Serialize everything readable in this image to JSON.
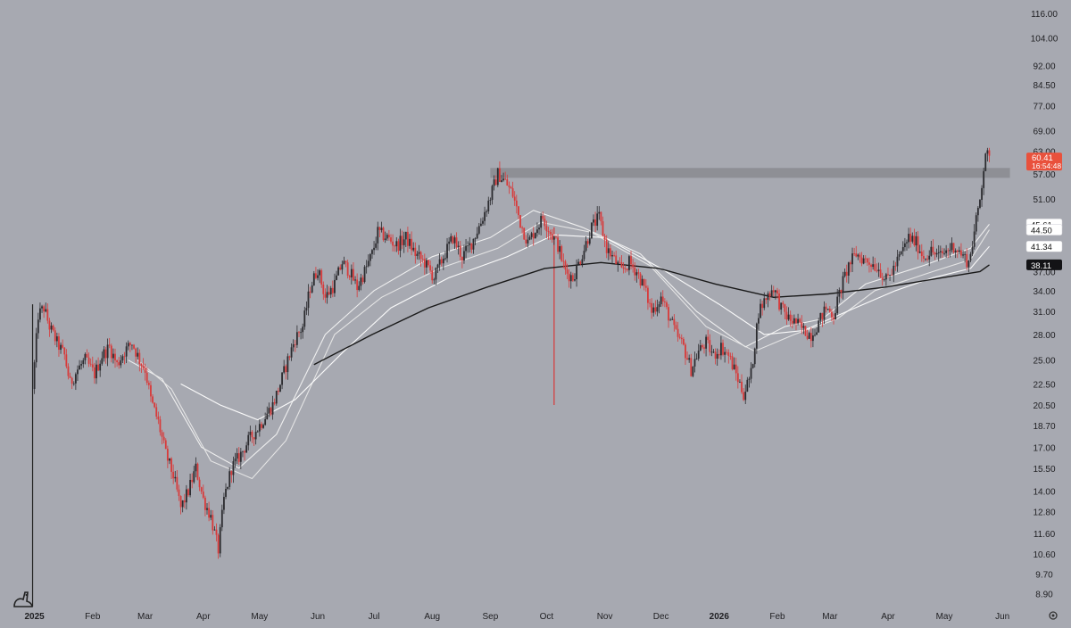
{
  "chart_data": {
    "type": "candlestick",
    "scale": "log",
    "y_ticks": [
      8.9,
      9.7,
      10.6,
      11.6,
      12.8,
      14.0,
      15.5,
      17.0,
      18.7,
      20.5,
      22.5,
      25.0,
      28.0,
      31.0,
      34.0,
      37.0,
      41.0,
      45.0,
      51.0,
      57.0,
      63.0,
      69.0,
      77.0,
      84.5,
      92.0,
      104.0,
      116.0
    ],
    "y_tick_labels": [
      "8.90",
      "9.70",
      "10.60",
      "11.60",
      "12.80",
      "14.00",
      "15.50",
      "17.00",
      "18.70",
      "20.50",
      "22.50",
      "25.00",
      "28.00",
      "31.00",
      "34.00",
      "37.00",
      "41.00",
      "45.00",
      "51.00",
      "57.00",
      "63.00",
      "69.00",
      "77.00",
      "84.50",
      "92.00",
      "104.00",
      "116.00"
    ],
    "x_ticks": [
      {
        "date": "2025-01-01",
        "label": "2025",
        "bold": true
      },
      {
        "date": "2025-02-01",
        "label": "Feb"
      },
      {
        "date": "2025-03-01",
        "label": "Mar"
      },
      {
        "date": "2025-04-01",
        "label": "Apr"
      },
      {
        "date": "2025-05-01",
        "label": "May"
      },
      {
        "date": "2025-06-01",
        "label": "Jun"
      },
      {
        "date": "2025-07-01",
        "label": "Jul"
      },
      {
        "date": "2025-08-01",
        "label": "Aug"
      },
      {
        "date": "2025-09-01",
        "label": "Sep"
      },
      {
        "date": "2025-10-01",
        "label": "Oct"
      },
      {
        "date": "2025-11-01",
        "label": "Nov"
      },
      {
        "date": "2025-12-01",
        "label": "Dec"
      },
      {
        "date": "2026-01-01",
        "label": "2026",
        "bold": true
      },
      {
        "date": "2026-02-01",
        "label": "Feb"
      },
      {
        "date": "2026-03-01",
        "label": "Mar"
      },
      {
        "date": "2026-04-01",
        "label": "Apr"
      },
      {
        "date": "2026-05-01",
        "label": "May"
      },
      {
        "date": "2026-06-01",
        "label": "Jun"
      }
    ],
    "x_range": [
      "2024-12-16",
      "2026-06-09"
    ],
    "y_range": [
      8.4,
      123
    ],
    "price_path": [
      [
        "2024-12-31",
        22.0
      ],
      [
        "2025-01-03",
        30.5
      ],
      [
        "2025-01-06",
        31.5
      ],
      [
        "2025-01-09",
        29.0
      ],
      [
        "2025-01-13",
        27.0
      ],
      [
        "2025-01-17",
        25.5
      ],
      [
        "2025-01-20",
        22.5
      ],
      [
        "2025-01-24",
        24.0
      ],
      [
        "2025-01-28",
        25.0
      ],
      [
        "2025-02-02",
        23.5
      ],
      [
        "2025-02-06",
        25.5
      ],
      [
        "2025-02-10",
        26.5
      ],
      [
        "2025-02-14",
        24.5
      ],
      [
        "2025-02-18",
        26.0
      ],
      [
        "2025-02-22",
        27.0
      ],
      [
        "2025-02-26",
        25.0
      ],
      [
        "2025-03-01",
        24.0
      ],
      [
        "2025-03-04",
        21.0
      ],
      [
        "2025-03-08",
        19.0
      ],
      [
        "2025-03-12",
        16.5
      ],
      [
        "2025-03-16",
        15.0
      ],
      [
        "2025-03-20",
        13.0
      ],
      [
        "2025-03-24",
        14.0
      ],
      [
        "2025-03-28",
        15.5
      ],
      [
        "2025-04-01",
        13.5
      ],
      [
        "2025-04-05",
        12.5
      ],
      [
        "2025-04-09",
        10.8
      ],
      [
        "2025-04-12",
        13.5
      ],
      [
        "2025-04-16",
        15.5
      ],
      [
        "2025-04-21",
        16.5
      ],
      [
        "2025-04-25",
        17.5
      ],
      [
        "2025-04-30",
        18.5
      ],
      [
        "2025-05-04",
        19.5
      ],
      [
        "2025-05-08",
        20.5
      ],
      [
        "2025-05-12",
        22.5
      ],
      [
        "2025-05-16",
        25.0
      ],
      [
        "2025-05-20",
        27.5
      ],
      [
        "2025-05-24",
        29.0
      ],
      [
        "2025-05-28",
        34.5
      ],
      [
        "2025-06-01",
        37.5
      ],
      [
        "2025-06-05",
        33.0
      ],
      [
        "2025-06-10",
        35.0
      ],
      [
        "2025-06-14",
        38.5
      ],
      [
        "2025-06-18",
        37.0
      ],
      [
        "2025-06-22",
        34.5
      ],
      [
        "2025-06-26",
        37.0
      ],
      [
        "2025-06-30",
        40.0
      ],
      [
        "2025-07-03",
        44.0
      ],
      [
        "2025-07-08",
        43.0
      ],
      [
        "2025-07-13",
        41.5
      ],
      [
        "2025-07-18",
        43.0
      ],
      [
        "2025-07-23",
        40.0
      ],
      [
        "2025-07-28",
        38.5
      ],
      [
        "2025-08-02",
        36.0
      ],
      [
        "2025-08-07",
        39.5
      ],
      [
        "2025-08-12",
        43.0
      ],
      [
        "2025-08-17",
        39.5
      ],
      [
        "2025-08-22",
        42.0
      ],
      [
        "2025-08-27",
        46.0
      ],
      [
        "2025-09-01",
        51.5
      ],
      [
        "2025-09-05",
        57.0
      ],
      [
        "2025-09-09",
        55.0
      ],
      [
        "2025-09-13",
        52.0
      ],
      [
        "2025-09-17",
        46.0
      ],
      [
        "2025-09-21",
        42.0
      ],
      [
        "2025-09-25",
        44.5
      ],
      [
        "2025-09-29",
        47.0
      ],
      [
        "2025-10-03",
        44.0
      ],
      [
        "2025-10-07",
        41.5
      ],
      [
        "2025-10-11",
        37.0
      ],
      [
        "2025-10-15",
        36.0
      ],
      [
        "2025-10-20",
        40.0
      ],
      [
        "2025-10-25",
        45.0
      ],
      [
        "2025-10-29",
        47.0
      ],
      [
        "2025-11-02",
        41.0
      ],
      [
        "2025-11-06",
        39.0
      ],
      [
        "2025-11-10",
        37.0
      ],
      [
        "2025-11-14",
        38.5
      ],
      [
        "2025-11-18",
        37.0
      ],
      [
        "2025-11-22",
        34.5
      ],
      [
        "2025-11-26",
        31.0
      ],
      [
        "2025-12-01",
        33.0
      ],
      [
        "2025-12-05",
        30.5
      ],
      [
        "2025-12-09",
        28.0
      ],
      [
        "2025-12-13",
        26.5
      ],
      [
        "2025-12-17",
        24.0
      ],
      [
        "2025-12-21",
        26.0
      ],
      [
        "2025-12-25",
        27.0
      ],
      [
        "2025-12-29",
        25.5
      ],
      [
        "2026-01-02",
        26.5
      ],
      [
        "2026-01-06",
        25.5
      ],
      [
        "2026-01-10",
        23.5
      ],
      [
        "2026-01-14",
        21.5
      ],
      [
        "2026-01-18",
        23.5
      ],
      [
        "2026-01-22",
        31.0
      ],
      [
        "2026-01-26",
        33.0
      ],
      [
        "2026-01-30",
        34.5
      ],
      [
        "2026-02-03",
        31.5
      ],
      [
        "2026-02-07",
        30.0
      ],
      [
        "2026-02-11",
        29.5
      ],
      [
        "2026-02-15",
        28.5
      ],
      [
        "2026-02-19",
        28.0
      ],
      [
        "2026-02-23",
        29.5
      ],
      [
        "2026-02-27",
        31.5
      ],
      [
        "2026-03-03",
        30.5
      ],
      [
        "2026-03-07",
        34.5
      ],
      [
        "2026-03-11",
        38.0
      ],
      [
        "2026-03-15",
        40.0
      ],
      [
        "2026-03-19",
        39.0
      ],
      [
        "2026-03-23",
        38.5
      ],
      [
        "2026-03-27",
        37.5
      ],
      [
        "2026-03-31",
        35.5
      ],
      [
        "2026-04-04",
        37.5
      ],
      [
        "2026-04-08",
        40.0
      ],
      [
        "2026-04-12",
        43.0
      ],
      [
        "2026-04-16",
        42.0
      ],
      [
        "2026-04-20",
        39.5
      ],
      [
        "2026-04-24",
        40.5
      ],
      [
        "2026-04-28",
        39.5
      ],
      [
        "2026-05-02",
        40.5
      ],
      [
        "2026-05-06",
        41.5
      ],
      [
        "2026-05-10",
        40.0
      ],
      [
        "2026-05-14",
        38.5
      ],
      [
        "2026-05-17",
        44.0
      ],
      [
        "2026-05-20",
        51.0
      ],
      [
        "2026-05-23",
        63.0
      ],
      [
        "2026-05-25",
        60.41
      ]
    ],
    "spikes": [
      {
        "date": "2024-12-31",
        "low": 8.4,
        "high": 32.0
      },
      {
        "date": "2025-10-05",
        "low": 20.5,
        "high": 45.0
      }
    ],
    "moving_averages": [
      {
        "color": "#f2f2f2",
        "last_value": 45.61,
        "path": [
          [
            "2025-02-20",
            25.0
          ],
          [
            "2025-03-10",
            23.0
          ],
          [
            "2025-03-31",
            17.0
          ],
          [
            "2025-04-20",
            15.5
          ],
          [
            "2025-05-10",
            18.0
          ],
          [
            "2025-06-05",
            28.0
          ],
          [
            "2025-07-01",
            34.0
          ],
          [
            "2025-08-01",
            39.5
          ],
          [
            "2025-09-01",
            43.0
          ],
          [
            "2025-09-24",
            48.5
          ],
          [
            "2025-10-20",
            45.0
          ],
          [
            "2025-11-20",
            40.0
          ],
          [
            "2025-12-20",
            31.0
          ],
          [
            "2026-01-15",
            26.5
          ],
          [
            "2026-02-05",
            29.0
          ],
          [
            "2026-02-25",
            30.0
          ],
          [
            "2026-03-20",
            35.0
          ],
          [
            "2026-04-20",
            38.0
          ],
          [
            "2026-05-15",
            41.0
          ],
          [
            "2026-05-25",
            45.61
          ]
        ]
      },
      {
        "color": "#e8e8e8",
        "last_value": 44.5,
        "path": [
          [
            "2025-02-25",
            25.0
          ],
          [
            "2025-03-15",
            22.0
          ],
          [
            "2025-04-05",
            16.0
          ],
          [
            "2025-04-27",
            14.8
          ],
          [
            "2025-05-15",
            17.5
          ],
          [
            "2025-06-10",
            28.0
          ],
          [
            "2025-07-05",
            33.0
          ],
          [
            "2025-08-05",
            37.5
          ],
          [
            "2025-09-05",
            41.0
          ],
          [
            "2025-09-28",
            46.0
          ],
          [
            "2025-10-25",
            44.0
          ],
          [
            "2025-11-25",
            38.0
          ],
          [
            "2025-12-25",
            29.0
          ],
          [
            "2026-01-20",
            26.0
          ],
          [
            "2026-02-10",
            28.0
          ],
          [
            "2026-03-05",
            30.0
          ],
          [
            "2026-03-25",
            34.0
          ],
          [
            "2026-04-25",
            37.0
          ],
          [
            "2026-05-15",
            39.0
          ],
          [
            "2026-05-25",
            44.5
          ]
        ]
      },
      {
        "color": "#ffffff",
        "last_value": 41.34,
        "path": [
          [
            "2025-03-20",
            22.5
          ],
          [
            "2025-04-10",
            20.5
          ],
          [
            "2025-04-30",
            19.2
          ],
          [
            "2025-05-20",
            21.0
          ],
          [
            "2025-06-15",
            26.0
          ],
          [
            "2025-07-10",
            31.5
          ],
          [
            "2025-08-10",
            36.0
          ],
          [
            "2025-09-10",
            39.5
          ],
          [
            "2025-10-05",
            43.5
          ],
          [
            "2025-11-01",
            43.0
          ],
          [
            "2025-12-01",
            37.5
          ],
          [
            "2026-01-01",
            32.0
          ],
          [
            "2026-01-25",
            28.0
          ],
          [
            "2026-02-15",
            28.5
          ],
          [
            "2026-03-10",
            31.0
          ],
          [
            "2026-04-05",
            34.0
          ],
          [
            "2026-04-25",
            36.0
          ],
          [
            "2026-05-15",
            37.5
          ],
          [
            "2026-05-25",
            41.34
          ]
        ]
      },
      {
        "color": "#111111",
        "last_value": 38.11,
        "path": [
          [
            "2025-05-30",
            24.5
          ],
          [
            "2025-06-30",
            28.0
          ],
          [
            "2025-07-30",
            31.5
          ],
          [
            "2025-08-30",
            34.5
          ],
          [
            "2025-09-30",
            37.5
          ],
          [
            "2025-10-30",
            38.5
          ],
          [
            "2025-11-30",
            37.5
          ],
          [
            "2025-12-30",
            35.0
          ],
          [
            "2026-01-30",
            33.0
          ],
          [
            "2026-02-28",
            33.5
          ],
          [
            "2026-03-30",
            34.5
          ],
          [
            "2026-04-30",
            36.0
          ],
          [
            "2026-05-20",
            37.0
          ],
          [
            "2026-05-25",
            38.11
          ]
        ]
      }
    ],
    "resistance_zone": {
      "from": "2025-09-01",
      "to": "2026-06-05",
      "low": 56.0,
      "high": 58.5
    },
    "last_price": {
      "value": 60.41,
      "label": "60.41",
      "countdown": "16:54:48"
    },
    "ma_labels": [
      {
        "text": "45.61",
        "value": 45.61,
        "style": "light"
      },
      {
        "text": "44.50",
        "value": 44.5,
        "style": "light"
      },
      {
        "text": "41.34",
        "value": 41.34,
        "style": "light"
      },
      {
        "text": "38.11",
        "value": 38.11,
        "style": "dark"
      }
    ],
    "colors": {
      "background": "#a7a9b1",
      "up": "#2b2b2f",
      "down": "#d83a3a",
      "price_tag": "#e9513c",
      "zone": "#8a8b91"
    }
  },
  "icons": {
    "logo": "tradingview-logo-icon",
    "settings": "gear-icon"
  }
}
